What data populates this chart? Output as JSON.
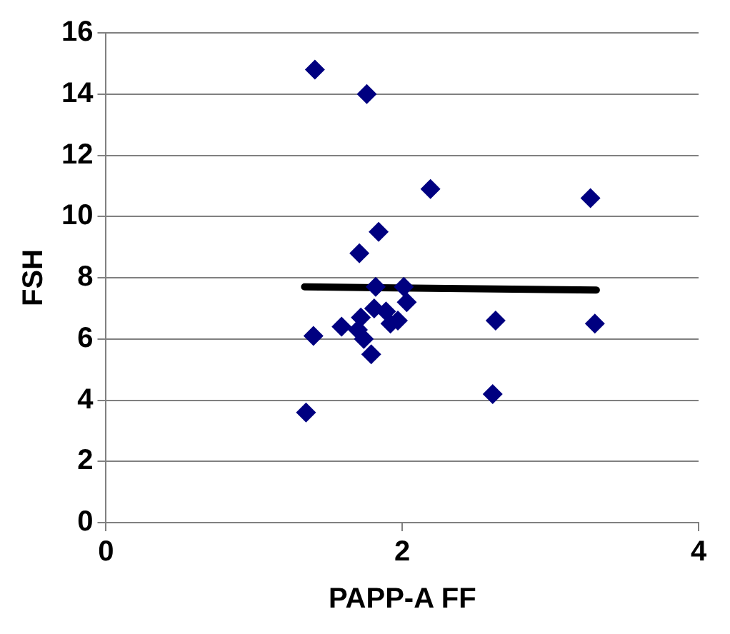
{
  "chart_data": {
    "type": "scatter",
    "xlabel": "PAPP-A FF",
    "ylabel": "FSH",
    "xlim": [
      0,
      4
    ],
    "xticks": [
      0,
      2,
      4
    ],
    "ylim": [
      0,
      16
    ],
    "yticks": [
      0,
      2,
      4,
      6,
      8,
      10,
      12,
      14,
      16
    ],
    "grid": "y",
    "series": [
      {
        "marker": "diamond",
        "color": "#000080",
        "x": [
          1.41,
          1.76,
          2.19,
          3.27,
          1.84,
          1.71,
          1.82,
          2.01,
          2.03,
          1.81,
          1.89,
          1.72,
          1.97,
          1.92,
          2.63,
          3.3,
          1.59,
          1.4,
          1.7,
          1.74,
          1.79,
          2.61,
          1.35
        ],
        "values": [
          14.8,
          14,
          10.9,
          10.6,
          9.5,
          8.8,
          7.7,
          7.7,
          7.2,
          7,
          6.9,
          6.7,
          6.6,
          6.5,
          6.6,
          6.5,
          6.4,
          6.1,
          6.3,
          6,
          5.5,
          4.2,
          3.6
        ]
      },
      {
        "type": "line",
        "marker": "none",
        "color": "#000000",
        "x": [
          1.34,
          3.31
        ],
        "values": [
          7.7,
          7.6
        ]
      }
    ]
  }
}
